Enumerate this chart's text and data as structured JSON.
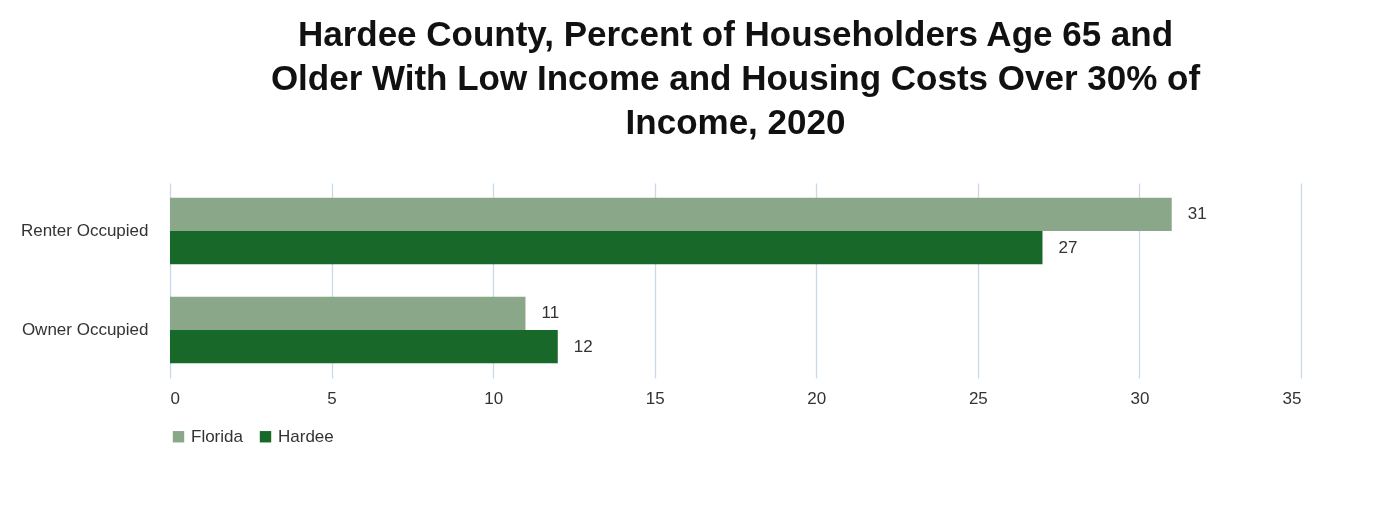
{
  "chart_data": {
    "type": "bar",
    "orientation": "horizontal",
    "title": "Hardee County, Percent of Householders Age 65 and Older With Low Income and Housing Costs Over 30% of Income, 2020",
    "categories": [
      "Renter Occupied",
      "Owner Occupied"
    ],
    "series": [
      {
        "name": "Florida",
        "color": "#8aa889",
        "values": [
          31,
          11
        ]
      },
      {
        "name": "Hardee",
        "color": "#18682a",
        "values": [
          27,
          12
        ]
      }
    ],
    "xlim": [
      0,
      35
    ],
    "xticks": [
      0,
      5,
      10,
      15,
      20,
      25,
      30,
      35
    ],
    "grid": "x",
    "legend": "bottom",
    "data_labels": true
  }
}
